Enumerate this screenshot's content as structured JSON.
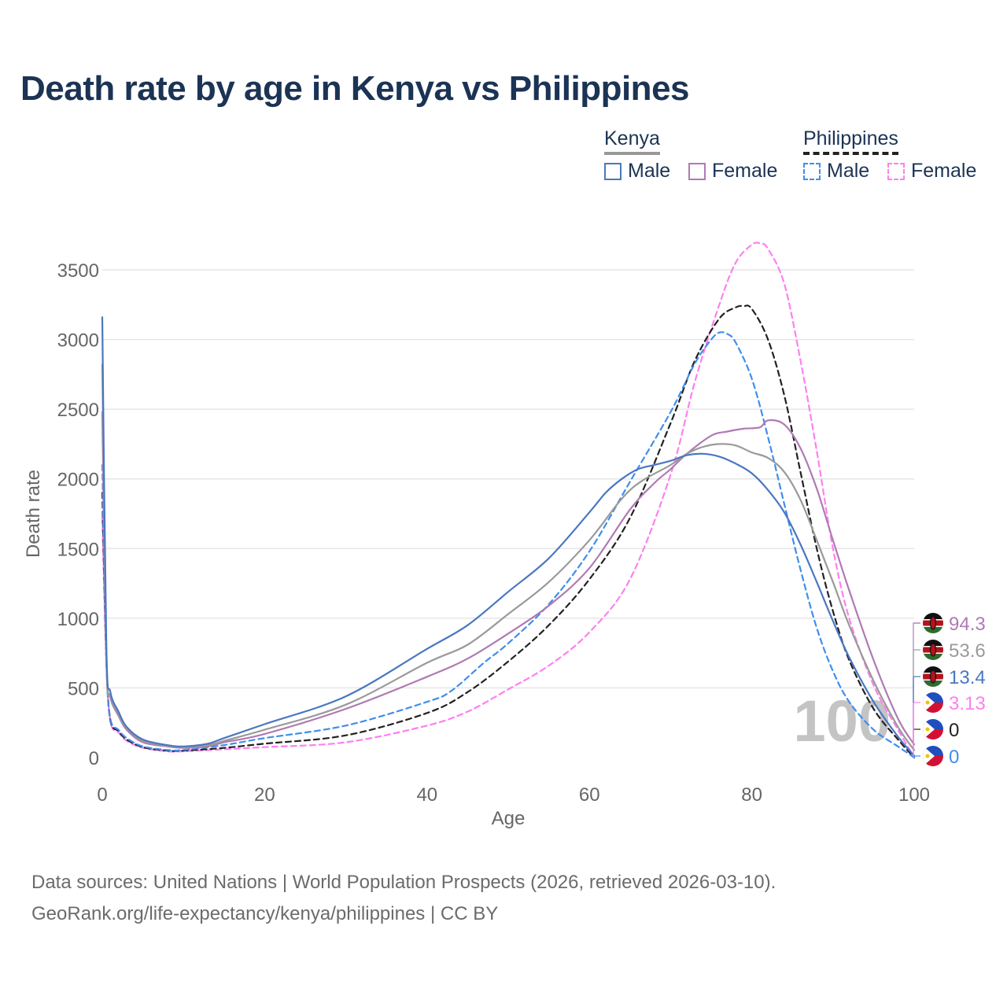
{
  "title": "Death rate by age in Kenya vs Philippines",
  "legend": {
    "groups": [
      {
        "name": "Kenya",
        "color": "#999999",
        "dash": false,
        "items": [
          {
            "label": "Male",
            "color": "#4a77c0"
          },
          {
            "label": "Female",
            "color": "#b07ab3"
          }
        ]
      },
      {
        "name": "Philippines",
        "color": "#222222",
        "dash": true,
        "items": [
          {
            "label": "Male",
            "color": "#3f8ef0"
          },
          {
            "label": "Female",
            "color": "#ff7ff0"
          }
        ]
      }
    ]
  },
  "year_watermark": "100",
  "footer": {
    "line1": "Data sources: United Nations | World Population Prospects (2026, retrieved 2026-03-10).",
    "line2": "GeoRank.org/life-expectancy/kenya/philippines | CC BY"
  },
  "colors": {
    "kenya_male": "#4a77c0",
    "kenya_total": "#9a9a9a",
    "kenya_female": "#b07ab3",
    "ph_male": "#3f8ef0",
    "ph_total": "#222222",
    "ph_female": "#ff7ff0",
    "title": "#1b3354",
    "axis_text": "#666666",
    "grid": "#e6e6e6"
  },
  "chart_data": {
    "type": "line",
    "xlabel": "Age",
    "ylabel": "Death rate",
    "xlim": [
      0,
      100
    ],
    "ylim": [
      0,
      3700
    ],
    "xticks": [
      0,
      20,
      40,
      60,
      80,
      100
    ],
    "yticks": [
      0,
      500,
      1000,
      1500,
      2000,
      2500,
      3000,
      3500
    ],
    "grid": true,
    "series": [
      {
        "key": "ph_female",
        "name": "Philippines Female",
        "dashed": true,
        "color": "#ff7ff0",
        "x": [
          0,
          0.5,
          1,
          2,
          3,
          5,
          8,
          10,
          15,
          20,
          30,
          40,
          45,
          50,
          55,
          60,
          65,
          70,
          73,
          76,
          78,
          80,
          81,
          82,
          84,
          86,
          88,
          90,
          92,
          95,
          98,
          100
        ],
        "y": [
          1720,
          700,
          260,
          180,
          120,
          70,
          45,
          45,
          60,
          75,
          110,
          230,
          330,
          490,
          660,
          900,
          1280,
          2030,
          2700,
          3250,
          3550,
          3680,
          3690,
          3650,
          3400,
          2850,
          2200,
          1500,
          1000,
          520,
          200,
          3.13
        ]
      },
      {
        "key": "ph_total",
        "name": "Philippines Total",
        "dashed": true,
        "color": "#222222",
        "x": [
          0,
          0.5,
          1,
          2,
          3,
          5,
          8,
          10,
          15,
          20,
          30,
          40,
          45,
          50,
          55,
          60,
          65,
          70,
          73,
          76,
          78,
          79,
          80,
          82,
          84,
          86,
          88,
          90,
          92,
          95,
          98,
          100
        ],
        "y": [
          1900,
          700,
          270,
          190,
          130,
          75,
          50,
          50,
          70,
          100,
          160,
          320,
          470,
          690,
          950,
          1280,
          1720,
          2400,
          2850,
          3150,
          3230,
          3240,
          3220,
          3000,
          2600,
          2050,
          1500,
          1050,
          700,
          350,
          130,
          0
        ]
      },
      {
        "key": "ph_male",
        "name": "Philippines Male",
        "dashed": true,
        "color": "#3f8ef0",
        "x": [
          0,
          0.5,
          1,
          2,
          3,
          5,
          8,
          10,
          15,
          20,
          30,
          40,
          43,
          47,
          50,
          55,
          60,
          65,
          70,
          73,
          75,
          76,
          77,
          78,
          80,
          82,
          84,
          86,
          88,
          90,
          92,
          95,
          98,
          100
        ],
        "y": [
          2100,
          700,
          280,
          200,
          140,
          80,
          55,
          55,
          90,
          140,
          230,
          400,
          480,
          680,
          820,
          1100,
          1480,
          1980,
          2480,
          2830,
          3000,
          3050,
          3040,
          2980,
          2720,
          2300,
          1820,
          1350,
          930,
          620,
          400,
          200,
          80,
          0
        ]
      },
      {
        "key": "kenya_female",
        "name": "Kenya Female",
        "dashed": false,
        "color": "#b07ab3",
        "x": [
          0,
          0.5,
          1,
          2,
          3,
          5,
          8,
          10,
          13,
          15,
          20,
          30,
          40,
          45,
          50,
          55,
          60,
          65,
          68,
          70,
          72,
          75,
          77,
          79,
          81,
          82,
          84,
          86,
          88,
          90,
          92,
          95,
          98,
          100
        ],
        "y": [
          2480,
          700,
          430,
          300,
          200,
          110,
          80,
          70,
          80,
          110,
          170,
          350,
          580,
          710,
          890,
          1090,
          1360,
          1780,
          1970,
          2070,
          2180,
          2310,
          2340,
          2360,
          2370,
          2420,
          2390,
          2220,
          1930,
          1560,
          1200,
          700,
          280,
          94.3
        ]
      },
      {
        "key": "kenya_total",
        "name": "Kenya Total",
        "dashed": false,
        "color": "#9a9a9a",
        "x": [
          0,
          0.5,
          1,
          2,
          3,
          5,
          8,
          10,
          13,
          15,
          20,
          30,
          40,
          45,
          50,
          55,
          60,
          65,
          70,
          72,
          74,
          76,
          78,
          80,
          82,
          84,
          86,
          88,
          90,
          92,
          95,
          98,
          100
        ],
        "y": [
          2820,
          700,
          440,
          310,
          210,
          120,
          85,
          75,
          90,
          120,
          200,
          380,
          680,
          810,
          1030,
          1260,
          1560,
          1920,
          2100,
          2180,
          2230,
          2250,
          2240,
          2190,
          2150,
          2050,
          1850,
          1560,
          1260,
          950,
          550,
          220,
          53.6
        ]
      },
      {
        "key": "kenya_male",
        "name": "Kenya Male",
        "dashed": false,
        "color": "#4a77c0",
        "x": [
          0,
          0.5,
          1,
          2,
          3,
          5,
          8,
          10,
          13,
          15,
          20,
          30,
          40,
          45,
          50,
          55,
          60,
          62,
          64,
          66,
          68,
          70,
          72,
          74,
          76,
          78,
          80,
          82,
          84,
          86,
          88,
          90,
          92,
          95,
          98,
          100
        ],
        "y": [
          3160,
          800,
          470,
          330,
          220,
          130,
          90,
          80,
          100,
          140,
          240,
          440,
          780,
          950,
          1190,
          1430,
          1760,
          1900,
          2000,
          2070,
          2100,
          2130,
          2170,
          2180,
          2160,
          2110,
          2040,
          1920,
          1760,
          1530,
          1260,
          980,
          720,
          400,
          150,
          13.4
        ]
      }
    ],
    "end_labels": [
      {
        "country": "Kenya",
        "value": "94.3",
        "color": "#b07ab3"
      },
      {
        "country": "Kenya",
        "value": "53.6",
        "color": "#9a9a9a"
      },
      {
        "country": "Kenya",
        "value": "13.4",
        "color": "#4a77c0"
      },
      {
        "country": "Philippines",
        "value": "3.13",
        "color": "#ff7ff0"
      },
      {
        "country": "Philippines",
        "value": "0",
        "color": "#222222"
      },
      {
        "country": "Philippines",
        "value": "0",
        "color": "#3f8ef0"
      }
    ]
  }
}
